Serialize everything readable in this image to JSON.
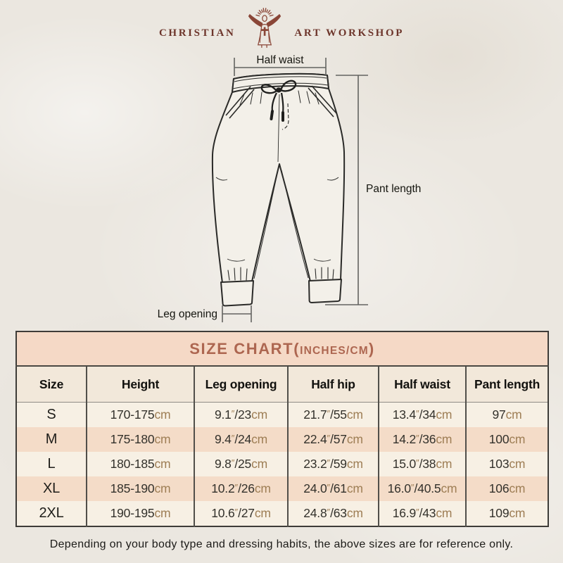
{
  "brand": {
    "name_left": "CHRISTIAN",
    "name_right": "ART WORKSHOP"
  },
  "diagram": {
    "half_waist_label": "Half waist",
    "pant_length_label": "Pant length",
    "leg_opening_label": "Leg opening"
  },
  "size_chart": {
    "title_main": "SIZE CHART",
    "title_paren_open": "(",
    "title_unit": "INCHES/CM",
    "title_paren_close": ")",
    "columns": [
      "Size",
      "Height",
      "Leg opening",
      "Half hip",
      "Half waist",
      "Pant length"
    ],
    "unit_cm": "cm",
    "unit_inch_mark": "″",
    "separator": "/",
    "rows": [
      {
        "size": "S",
        "height_range": "170-175",
        "leg_opening_in": "9.1",
        "leg_opening_cm": "23",
        "half_hip_in": "21.7",
        "half_hip_cm": "55",
        "half_waist_in": "13.4",
        "half_waist_cm": "34",
        "pant_length_cm": "97"
      },
      {
        "size": "M",
        "height_range": "175-180",
        "leg_opening_in": "9.4",
        "leg_opening_cm": "24",
        "half_hip_in": "22.4",
        "half_hip_cm": "57",
        "half_waist_in": "14.2",
        "half_waist_cm": "36",
        "pant_length_cm": "100"
      },
      {
        "size": "L",
        "height_range": "180-185",
        "leg_opening_in": "9.8",
        "leg_opening_cm": "25",
        "half_hip_in": "23.2",
        "half_hip_cm": "59",
        "half_waist_in": "15.0",
        "half_waist_cm": "38",
        "pant_length_cm": "103"
      },
      {
        "size": "XL",
        "height_range": "185-190",
        "leg_opening_in": "10.2",
        "leg_opening_cm": "26",
        "half_hip_in": "24.0",
        "half_hip_cm": "61",
        "half_waist_in": "16.0",
        "half_waist_cm": "40.5",
        "pant_length_cm": "106"
      },
      {
        "size": "2XL",
        "height_range": "190-195",
        "leg_opening_in": "10.6",
        "leg_opening_cm": "27",
        "half_hip_in": "24.8",
        "half_hip_cm": "63",
        "half_waist_in": "16.9",
        "half_waist_cm": "43",
        "pant_length_cm": "109"
      }
    ]
  },
  "footer_note": "Depending on your body type and dressing habits, the above sizes are for reference only.",
  "colors": {
    "accent_title": "#ad6650",
    "unit_tan": "#9e7e55",
    "peach_band": "#f5d9c6",
    "peach_row": "#f4dcc8",
    "cream_row": "#f7f0e4",
    "header_row": "#f2e8da",
    "logo": "#8a4637"
  }
}
